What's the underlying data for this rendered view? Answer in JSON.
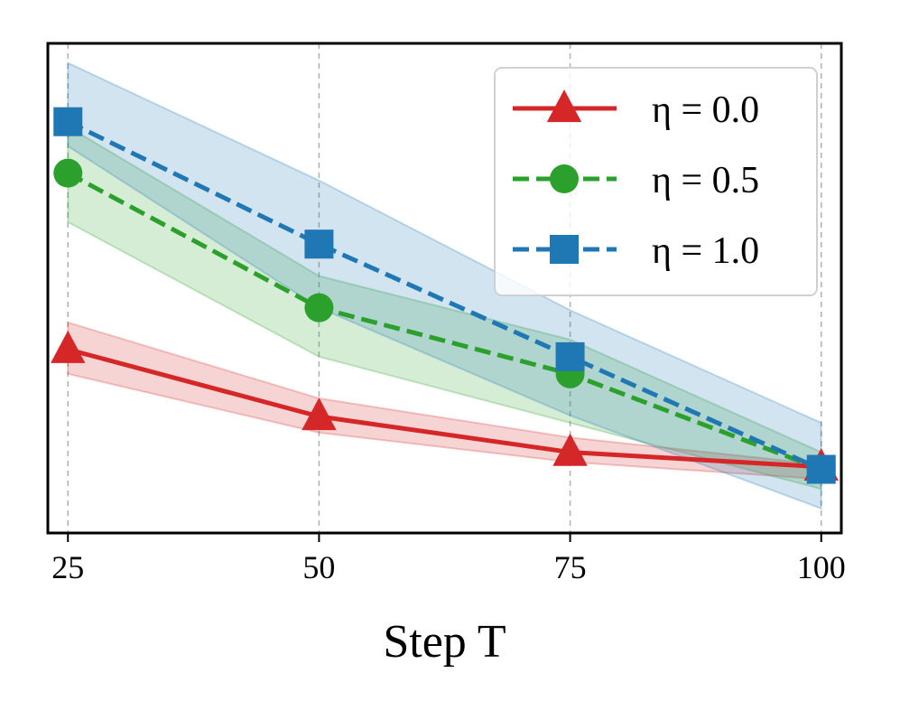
{
  "chart_data": {
    "type": "line",
    "title": "",
    "xlabel": "Step T",
    "ylabel": "",
    "x": [
      25,
      50,
      75,
      100
    ],
    "xticks": [
      "25",
      "50",
      "75",
      "100"
    ],
    "xlim": [
      23,
      102
    ],
    "ylim": [
      0,
      1
    ],
    "yticks_visible": false,
    "grid": "x-dashed",
    "legend_position": "top-right",
    "series": [
      {
        "name": "η = 0.0",
        "color": "#d62728",
        "linestyle": "solid",
        "marker": "triangle",
        "values": [
          0.375,
          0.238,
          0.165,
          0.135
        ],
        "lower": [
          0.325,
          0.205,
          0.145,
          0.11
        ],
        "upper": [
          0.43,
          0.275,
          0.195,
          0.14
        ]
      },
      {
        "name": "η = 0.5",
        "color": "#2ca02c",
        "linestyle": "dashed",
        "marker": "circle",
        "values": [
          0.735,
          0.46,
          0.325,
          0.13
        ],
        "lower": [
          0.635,
          0.36,
          0.225,
          0.09
        ],
        "upper": [
          0.83,
          0.525,
          0.395,
          0.165
        ]
      },
      {
        "name": "η = 1.0",
        "color": "#1f77b4",
        "linestyle": "dashed",
        "marker": "square",
        "values": [
          0.84,
          0.59,
          0.36,
          0.13
        ],
        "lower": [
          0.79,
          0.46,
          0.24,
          0.05
        ],
        "upper": [
          0.96,
          0.72,
          0.455,
          0.225
        ]
      }
    ]
  }
}
